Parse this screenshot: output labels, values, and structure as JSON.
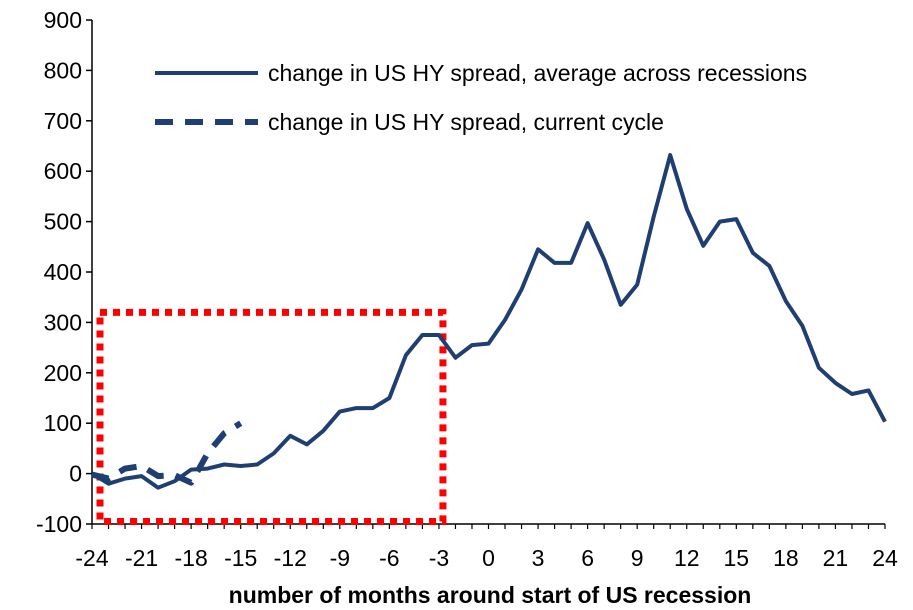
{
  "chart_data": {
    "type": "line",
    "title": "",
    "xlabel": "number of months around start of US recession",
    "ylabel": "",
    "xlim": [
      -24,
      24
    ],
    "ylim": [
      -100,
      900
    ],
    "x_ticks": [
      -24,
      -21,
      -18,
      -15,
      -12,
      -9,
      -6,
      -3,
      0,
      3,
      6,
      9,
      12,
      15,
      18,
      21,
      24
    ],
    "y_ticks": [
      -100,
      0,
      100,
      200,
      300,
      400,
      500,
      600,
      700,
      800,
      900
    ],
    "grid": false,
    "legend_position": "top-right",
    "colors": {
      "series": "#1F3F73",
      "highlight_box": "#FF0000"
    },
    "series": [
      {
        "name": "change in US HY spread, average across recessions",
        "style": "solid",
        "x": [
          -24,
          -23,
          -22,
          -21,
          -20,
          -19,
          -18,
          -17,
          -16,
          -15,
          -14,
          -13,
          -12,
          -11,
          -10,
          -9,
          -8,
          -7,
          -6,
          -5,
          -4,
          -3,
          -2,
          -1,
          0,
          1,
          2,
          3,
          4,
          5,
          6,
          7,
          8,
          9,
          10,
          11,
          12,
          13,
          14,
          15,
          16,
          17,
          18,
          19,
          20,
          21,
          22,
          23,
          24
        ],
        "y": [
          0,
          -20,
          -10,
          -5,
          -28,
          -15,
          8,
          10,
          18,
          15,
          18,
          40,
          75,
          58,
          85,
          123,
          130,
          130,
          150,
          235,
          275,
          275,
          230,
          255,
          258,
          305,
          365,
          445,
          418,
          418,
          497,
          425,
          335,
          375,
          510,
          632,
          525,
          452,
          500,
          505,
          438,
          412,
          342,
          293,
          210,
          180,
          158,
          165,
          103
        ]
      },
      {
        "name": "change in US HY spread, current cycle",
        "style": "dashed",
        "x": [
          -24,
          -23,
          -22,
          -21,
          -20,
          -19,
          -18,
          -17,
          -16,
          -15
        ],
        "y": [
          -2,
          -10,
          10,
          15,
          -5,
          -3,
          -18,
          40,
          80,
          100
        ]
      }
    ],
    "annotations": [
      {
        "type": "highlight-box",
        "x_range": [
          -24,
          -3
        ],
        "y_range": [
          -95,
          320
        ]
      }
    ]
  }
}
